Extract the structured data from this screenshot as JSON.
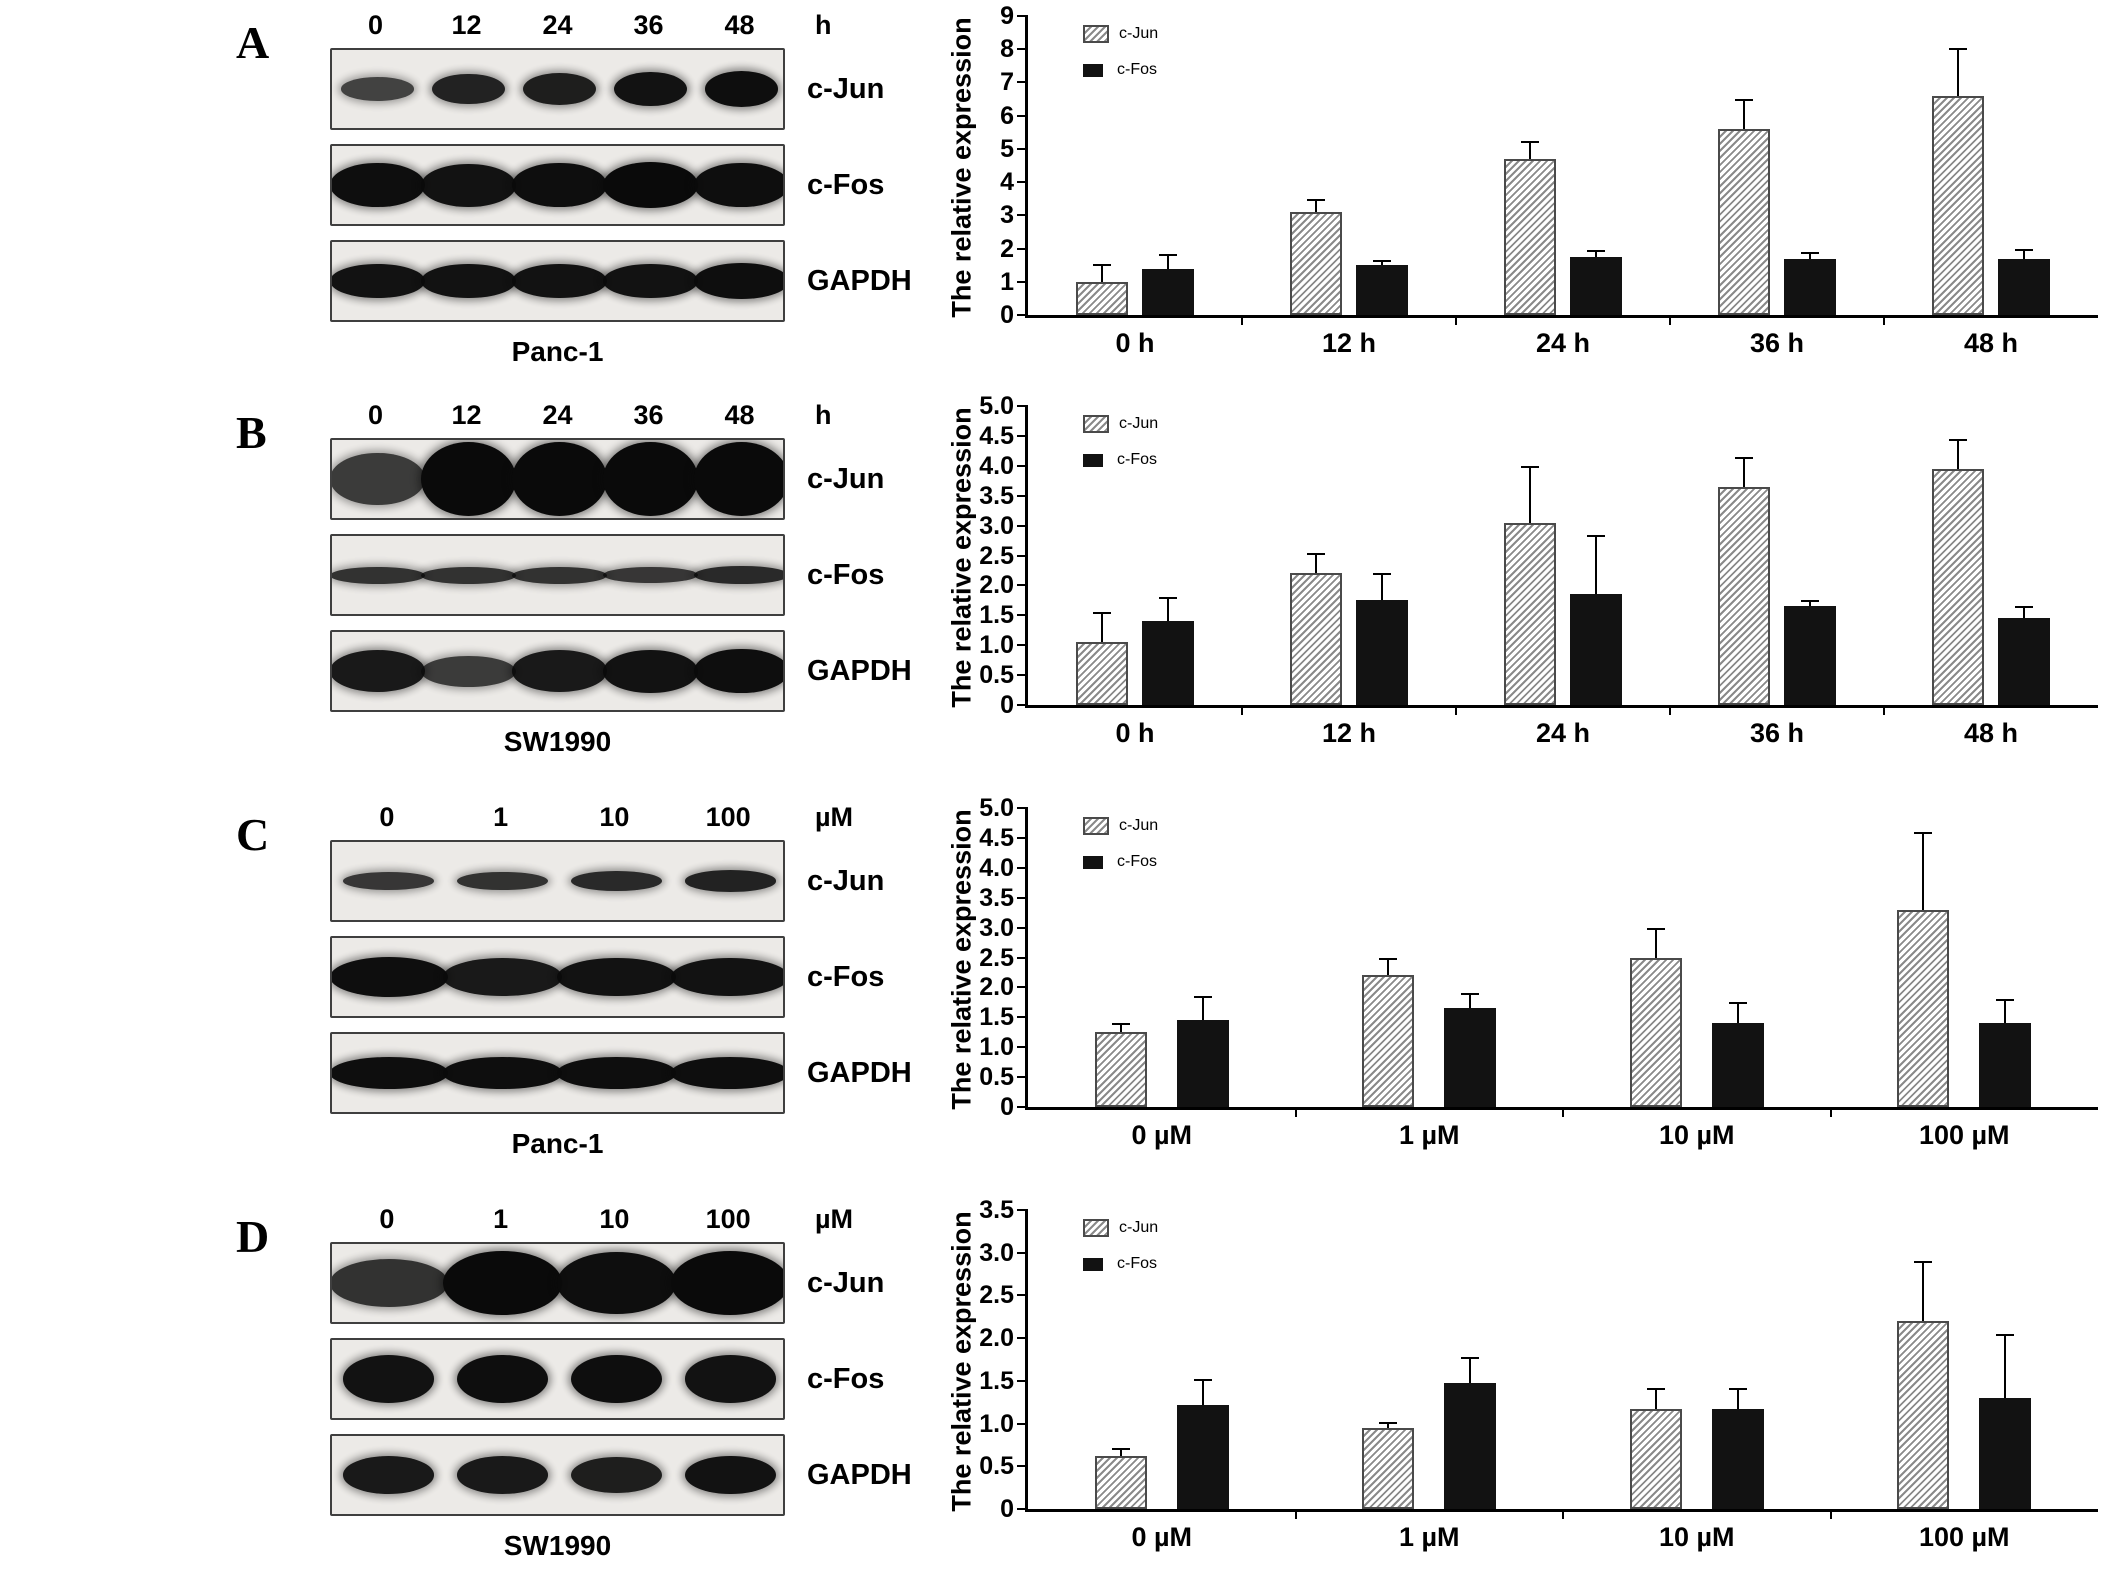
{
  "panels": [
    {
      "letter": "A",
      "cell_line": "Panc-1",
      "lane_labels": [
        "0",
        "12",
        "24",
        "36",
        "48"
      ],
      "unit": "h",
      "blot_rows": [
        {
          "label": "c-Jun",
          "bands": [
            0.45,
            0.75,
            0.8,
            0.9,
            0.95
          ],
          "weight": 0.8,
          "merge": false
        },
        {
          "label": "c-Fos",
          "bands": [
            0.95,
            0.9,
            0.95,
            1.0,
            0.95
          ],
          "weight": 1.0,
          "merge": true
        },
        {
          "label": "GAPDH",
          "bands": [
            0.9,
            0.9,
            0.9,
            0.9,
            0.95
          ],
          "weight": 0.8,
          "merge": true
        }
      ]
    },
    {
      "letter": "B",
      "cell_line": "SW1990",
      "lane_labels": [
        "0",
        "12",
        "24",
        "36",
        "48"
      ],
      "unit": "h",
      "blot_rows": [
        {
          "label": "c-Jun",
          "bands": [
            0.5,
            1.0,
            1.0,
            1.0,
            1.0
          ],
          "weight": 1.7,
          "merge": true
        },
        {
          "label": "c-Fos",
          "bands": [
            0.6,
            0.6,
            0.6,
            0.55,
            0.7
          ],
          "weight": 0.5,
          "merge": true
        },
        {
          "label": "GAPDH",
          "bands": [
            0.85,
            0.5,
            0.85,
            0.9,
            0.95
          ],
          "weight": 1.0,
          "merge": true
        }
      ]
    },
    {
      "letter": "C",
      "cell_line": "Panc-1",
      "lane_labels": [
        "0",
        "1",
        "10",
        "100"
      ],
      "unit": "µM",
      "blot_rows": [
        {
          "label": "c-Jun",
          "bands": [
            0.55,
            0.6,
            0.7,
            0.75
          ],
          "weight": 0.55,
          "merge": false
        },
        {
          "label": "c-Fos",
          "bands": [
            0.95,
            0.85,
            0.9,
            0.9
          ],
          "weight": 0.9,
          "merge": true
        },
        {
          "label": "GAPDH",
          "bands": [
            0.95,
            0.95,
            0.95,
            0.95
          ],
          "weight": 0.7,
          "merge": true
        }
      ]
    },
    {
      "letter": "D",
      "cell_line": "SW1990",
      "lane_labels": [
        "0",
        "1",
        "10",
        "100"
      ],
      "unit": "µM",
      "blot_rows": [
        {
          "label": "c-Jun",
          "bands": [
            0.6,
            1.0,
            0.95,
            1.0
          ],
          "weight": 1.4,
          "merge": true
        },
        {
          "label": "c-Fos",
          "bands": [
            0.9,
            0.95,
            0.95,
            0.9
          ],
          "weight": 1.1,
          "merge": false
        },
        {
          "label": "GAPDH",
          "bands": [
            0.85,
            0.85,
            0.8,
            0.9
          ],
          "weight": 0.9,
          "merge": false
        }
      ]
    }
  ],
  "chart_data": [
    {
      "type": "bar",
      "panel": "A",
      "title": "",
      "xlabel": "",
      "ylabel": "The relative expression",
      "categories": [
        "0 h",
        "12 h",
        "24 h",
        "36 h",
        "48 h"
      ],
      "series": [
        {
          "name": "c-Jun",
          "values": [
            1.0,
            3.1,
            4.7,
            5.6,
            6.6
          ],
          "errors": [
            0.55,
            0.4,
            0.55,
            0.9,
            1.45
          ]
        },
        {
          "name": "c-Fos",
          "values": [
            1.4,
            1.5,
            1.75,
            1.7,
            1.7
          ],
          "errors": [
            0.45,
            0.15,
            0.2,
            0.2,
            0.3
          ]
        }
      ],
      "ylim": [
        0,
        9
      ],
      "ytick_labels": [
        "0",
        "1",
        "2",
        "3",
        "4",
        "5",
        "6",
        "7",
        "8",
        "9"
      ],
      "grid": false,
      "legend_position": "top-left"
    },
    {
      "type": "bar",
      "panel": "B",
      "title": "",
      "xlabel": "",
      "ylabel": "The relative expression",
      "categories": [
        "0 h",
        "12 h",
        "24 h",
        "36 h",
        "48 h"
      ],
      "series": [
        {
          "name": "c-Jun",
          "values": [
            1.05,
            2.2,
            3.05,
            3.65,
            3.95
          ],
          "errors": [
            0.5,
            0.35,
            0.95,
            0.5,
            0.5
          ]
        },
        {
          "name": "c-Fos",
          "values": [
            1.4,
            1.75,
            1.85,
            1.65,
            1.45
          ],
          "errors": [
            0.4,
            0.45,
            1.0,
            0.1,
            0.2
          ]
        }
      ],
      "ylim": [
        0,
        5
      ],
      "ytick_labels": [
        "0",
        "0.5",
        "1.0",
        "1.5",
        "2.0",
        "2.5",
        "3.0",
        "3.5",
        "4.0",
        "4.5",
        "5.0"
      ],
      "grid": false,
      "legend_position": "top-left"
    },
    {
      "type": "bar",
      "panel": "C",
      "title": "",
      "xlabel": "",
      "ylabel": "The relative expression",
      "categories": [
        "0 µM",
        "1 µM",
        "10 µM",
        "100 µM"
      ],
      "series": [
        {
          "name": "c-Jun",
          "values": [
            1.25,
            2.2,
            2.5,
            3.3
          ],
          "errors": [
            0.15,
            0.3,
            0.5,
            1.3
          ]
        },
        {
          "name": "c-Fos",
          "values": [
            1.45,
            1.65,
            1.4,
            1.4
          ],
          "errors": [
            0.4,
            0.25,
            0.35,
            0.4
          ]
        }
      ],
      "ylim": [
        0,
        5
      ],
      "ytick_labels": [
        "0",
        "0.5",
        "1.0",
        "1.5",
        "2.0",
        "2.5",
        "3.0",
        "3.5",
        "4.0",
        "4.5",
        "5.0"
      ],
      "grid": false,
      "legend_position": "top-left"
    },
    {
      "type": "bar",
      "panel": "D",
      "title": "",
      "xlabel": "",
      "ylabel": "The relative expression",
      "categories": [
        "0 µM",
        "1 µM",
        "10 µM",
        "100 µM"
      ],
      "series": [
        {
          "name": "c-Jun",
          "values": [
            0.62,
            0.95,
            1.17,
            2.2
          ],
          "errors": [
            0.1,
            0.07,
            0.25,
            0.7
          ]
        },
        {
          "name": "c-Fos",
          "values": [
            1.22,
            1.48,
            1.17,
            1.3
          ],
          "errors": [
            0.3,
            0.3,
            0.25,
            0.75
          ]
        }
      ],
      "ylim": [
        0,
        3.5
      ],
      "ytick_labels": [
        "0",
        "0.5",
        "1.0",
        "1.5",
        "2.0",
        "2.5",
        "3.0",
        "3.5"
      ],
      "grid": false,
      "legend_position": "top-left"
    }
  ],
  "colors": {
    "bar_hatch_stripe": "#8a8a8a",
    "bar_solid_fill": "#121212",
    "axis": "#000000",
    "blot_background": "#eceae7",
    "blot_band": "#0a0a0a",
    "background": "#ffffff"
  }
}
